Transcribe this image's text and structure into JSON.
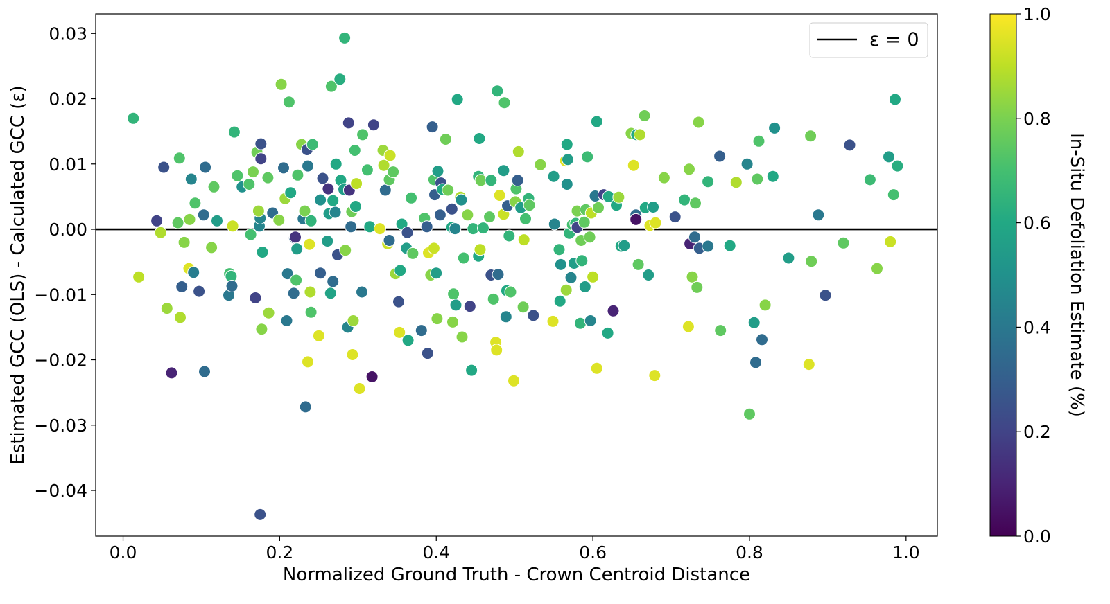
{
  "chart_data": {
    "type": "scatter",
    "title": "",
    "xlabel": "Normalized Ground Truth - Crown Centroid Distance",
    "ylabel": "Estimated GCC (OLS) - Calculated GCC  (ε)",
    "xlim": [
      -0.035,
      1.04
    ],
    "ylim": [
      -0.047,
      0.033
    ],
    "xticks": [
      0.0,
      0.2,
      0.4,
      0.6,
      0.8,
      1.0
    ],
    "xtick_labels": [
      "0.0",
      "0.2",
      "0.4",
      "0.6",
      "0.8",
      "1.0"
    ],
    "yticks": [
      0.03,
      0.02,
      0.01,
      0.0,
      -0.01,
      -0.02,
      -0.03,
      -0.04
    ],
    "ytick_labels": [
      "0.03",
      "0.02",
      "0.01",
      "0.00",
      "−0.01",
      "−0.02",
      "−0.03",
      "−0.04"
    ],
    "reference_line": {
      "y": 0,
      "label": "ε = 0"
    },
    "legend": {
      "position": "top-right",
      "entries": [
        "ε = 0"
      ]
    },
    "colorbar": {
      "label": "In-Situ Defoliation Estimate (%)",
      "colormap": "viridis",
      "range": [
        0.0,
        1.0
      ],
      "ticks": [
        0.0,
        0.2,
        0.4,
        0.6,
        0.8,
        1.0
      ],
      "tick_labels": [
        "0.0",
        "0.2",
        "0.4",
        "0.6",
        "0.8",
        "1.0"
      ]
    },
    "points": [
      [
        0.013,
        0.017,
        0.65
      ],
      [
        0.02,
        -0.0073,
        0.9
      ],
      [
        0.043,
        0.0013,
        0.2
      ],
      [
        0.048,
        -0.0005,
        0.88
      ],
      [
        0.052,
        0.0095,
        0.25
      ],
      [
        0.056,
        -0.0121,
        0.85
      ],
      [
        0.062,
        -0.022,
        0.1
      ],
      [
        0.07,
        0.001,
        0.75
      ],
      [
        0.072,
        0.0109,
        0.72
      ],
      [
        0.073,
        -0.0135,
        0.88
      ],
      [
        0.075,
        -0.0088,
        0.3
      ],
      [
        0.078,
        -0.002,
        0.82
      ],
      [
        0.084,
        -0.006,
        0.95
      ],
      [
        0.085,
        0.0015,
        0.82
      ],
      [
        0.087,
        0.0077,
        0.45
      ],
      [
        0.09,
        -0.0066,
        0.42
      ],
      [
        0.092,
        0.004,
        0.72
      ],
      [
        0.097,
        -0.0095,
        0.25
      ],
      [
        0.103,
        0.0022,
        0.35
      ],
      [
        0.104,
        -0.0218,
        0.35
      ],
      [
        0.105,
        0.0095,
        0.35
      ],
      [
        0.113,
        -0.0028,
        0.82
      ],
      [
        0.116,
        0.0065,
        0.75
      ],
      [
        0.12,
        0.0013,
        0.55
      ],
      [
        0.135,
        -0.0101,
        0.4
      ],
      [
        0.136,
        -0.0068,
        0.7
      ],
      [
        0.138,
        -0.0072,
        0.65
      ],
      [
        0.139,
        -0.0087,
        0.35
      ],
      [
        0.14,
        0.0005,
        0.92
      ],
      [
        0.142,
        0.0149,
        0.65
      ],
      [
        0.146,
        0.0082,
        0.72
      ],
      [
        0.152,
        0.0065,
        0.5
      ],
      [
        0.161,
        0.0069,
        0.72
      ],
      [
        0.163,
        -0.0008,
        0.7
      ],
      [
        0.166,
        0.0088,
        0.8
      ],
      [
        0.169,
        -0.0105,
        0.2
      ],
      [
        0.171,
        0.0118,
        0.78
      ],
      [
        0.174,
        0.0005,
        0.45
      ],
      [
        0.175,
        0.0017,
        0.45
      ],
      [
        0.175,
        -0.0437,
        0.25
      ],
      [
        0.176,
        0.0108,
        0.2
      ],
      [
        0.177,
        -0.0153,
        0.82
      ],
      [
        0.178,
        -0.0035,
        0.6
      ],
      [
        0.176,
        0.0131,
        0.25
      ],
      [
        0.173,
        0.0028,
        0.85
      ],
      [
        0.185,
        0.0079,
        0.75
      ],
      [
        0.186,
        -0.0128,
        0.85
      ],
      [
        0.191,
        0.0025,
        0.35
      ],
      [
        0.199,
        0.0014,
        0.82
      ],
      [
        0.202,
        0.0222,
        0.82
      ],
      [
        0.205,
        0.0094,
        0.35
      ],
      [
        0.207,
        0.0047,
        0.85
      ],
      [
        0.209,
        -0.014,
        0.4
      ],
      [
        0.21,
        -0.0068,
        0.4
      ],
      [
        0.212,
        0.0195,
        0.72
      ],
      [
        0.214,
        0.0056,
        0.6
      ],
      [
        0.218,
        -0.0098,
        0.35
      ],
      [
        0.219,
        -0.0013,
        0.3
      ],
      [
        0.22,
        -0.0012,
        0.15
      ],
      [
        0.221,
        -0.0078,
        0.72
      ],
      [
        0.222,
        -0.003,
        0.55
      ],
      [
        0.223,
        0.0083,
        0.72
      ],
      [
        0.228,
        0.013,
        0.82
      ],
      [
        0.23,
        0.0016,
        0.4
      ],
      [
        0.232,
        0.0028,
        0.8
      ],
      [
        0.233,
        -0.0272,
        0.35
      ],
      [
        0.235,
        0.0122,
        0.25
      ],
      [
        0.236,
        0.0097,
        0.4
      ],
      [
        0.236,
        -0.0203,
        0.95
      ],
      [
        0.238,
        -0.0023,
        0.95
      ],
      [
        0.239,
        -0.0096,
        0.88
      ],
      [
        0.24,
        0.0013,
        0.65
      ],
      [
        0.24,
        -0.0127,
        0.72
      ],
      [
        0.242,
        0.013,
        0.68
      ],
      [
        0.25,
        -0.0163,
        0.95
      ],
      [
        0.252,
        0.0045,
        0.5
      ],
      [
        0.252,
        -0.0067,
        0.3
      ],
      [
        0.255,
        0.0078,
        0.25
      ],
      [
        0.261,
        -0.0018,
        0.55
      ],
      [
        0.262,
        0.0062,
        0.15
      ],
      [
        0.263,
        0.0024,
        0.55
      ],
      [
        0.265,
        -0.0098,
        0.58
      ],
      [
        0.266,
        0.0219,
        0.72
      ],
      [
        0.268,
        0.0044,
        0.6
      ],
      [
        0.268,
        -0.008,
        0.35
      ],
      [
        0.271,
        0.0026,
        0.45
      ],
      [
        0.272,
        0.01,
        0.6
      ],
      [
        0.274,
        -0.0039,
        0.25
      ],
      [
        0.277,
        0.023,
        0.62
      ],
      [
        0.278,
        0.0075,
        0.6
      ],
      [
        0.282,
        0.0061,
        0.55
      ],
      [
        0.283,
        0.0293,
        0.65
      ],
      [
        0.284,
        -0.0032,
        0.82
      ],
      [
        0.287,
        -0.015,
        0.45
      ],
      [
        0.288,
        0.0163,
        0.2
      ],
      [
        0.289,
        0.006,
        0.15
      ],
      [
        0.291,
        0.0004,
        0.35
      ],
      [
        0.292,
        0.0027,
        0.78
      ],
      [
        0.293,
        -0.0192,
        0.95
      ],
      [
        0.294,
        -0.014,
        0.85
      ],
      [
        0.296,
        0.0121,
        0.7
      ],
      [
        0.297,
        0.0035,
        0.6
      ],
      [
        0.298,
        0.007,
        0.9
      ],
      [
        0.302,
        -0.0244,
        0.95
      ],
      [
        0.305,
        -0.0096,
        0.4
      ],
      [
        0.306,
        0.0145,
        0.72
      ],
      [
        0.312,
        0.0091,
        0.7
      ],
      [
        0.315,
        0.0004,
        0.6
      ],
      [
        0.318,
        -0.0226,
        0.05
      ],
      [
        0.32,
        0.016,
        0.2
      ],
      [
        0.328,
        0.0001,
        0.95
      ],
      [
        0.332,
        0.0121,
        0.85
      ],
      [
        0.333,
        0.0098,
        0.88
      ],
      [
        0.335,
        0.006,
        0.35
      ],
      [
        0.338,
        -0.0022,
        0.92
      ],
      [
        0.34,
        0.0076,
        0.75
      ],
      [
        0.34,
        -0.0017,
        0.35
      ],
      [
        0.341,
        0.0113,
        0.92
      ],
      [
        0.345,
        0.0088,
        0.75
      ],
      [
        0.348,
        -0.0068,
        0.85
      ],
      [
        0.352,
        -0.0111,
        0.25
      ],
      [
        0.353,
        -0.0158,
        0.95
      ],
      [
        0.354,
        -0.0063,
        0.6
      ],
      [
        0.356,
        0.0008,
        0.6
      ],
      [
        0.362,
        -0.0029,
        0.55
      ],
      [
        0.363,
        -0.0005,
        0.25
      ],
      [
        0.364,
        -0.017,
        0.6
      ],
      [
        0.368,
        0.0048,
        0.7
      ],
      [
        0.37,
        -0.0037,
        0.75
      ],
      [
        0.381,
        -0.0155,
        0.35
      ],
      [
        0.385,
        0.0017,
        0.72
      ],
      [
        0.388,
        0.0004,
        0.3
      ],
      [
        0.389,
        -0.019,
        0.25
      ],
      [
        0.39,
        -0.0036,
        0.95
      ],
      [
        0.393,
        -0.007,
        0.82
      ],
      [
        0.395,
        0.0157,
        0.3
      ],
      [
        0.397,
        0.0076,
        0.72
      ],
      [
        0.397,
        -0.0029,
        0.92
      ],
      [
        0.398,
        0.0053,
        0.3
      ],
      [
        0.4,
        -0.0067,
        0.55
      ],
      [
        0.401,
        -0.0137,
        0.82
      ],
      [
        0.402,
        0.0089,
        0.55
      ],
      [
        0.405,
        0.0022,
        0.3
      ],
      [
        0.406,
        0.0071,
        0.25
      ],
      [
        0.408,
        0.0061,
        0.6
      ],
      [
        0.412,
        0.0138,
        0.78
      ],
      [
        0.415,
        0.006,
        0.78
      ],
      [
        0.42,
        0.0003,
        0.6
      ],
      [
        0.421,
        -0.0142,
        0.82
      ],
      [
        0.422,
        -0.0099,
        0.72
      ],
      [
        0.42,
        0.0031,
        0.25
      ],
      [
        0.424,
        0.0001,
        0.45
      ],
      [
        0.425,
        -0.0116,
        0.55
      ],
      [
        0.427,
        0.0199,
        0.6
      ],
      [
        0.431,
        0.0049,
        0.88
      ],
      [
        0.432,
        0.0045,
        0.5
      ],
      [
        0.433,
        -0.0165,
        0.82
      ],
      [
        0.435,
        -0.0044,
        0.7
      ],
      [
        0.44,
        0.0022,
        0.82
      ],
      [
        0.443,
        -0.0118,
        0.2
      ],
      [
        0.445,
        -0.0216,
        0.6
      ],
      [
        0.447,
        0.0001,
        0.65
      ],
      [
        0.454,
        -0.0041,
        0.6
      ],
      [
        0.454,
        0.0081,
        0.65
      ],
      [
        0.455,
        0.0139,
        0.6
      ],
      [
        0.456,
        -0.0031,
        0.9
      ],
      [
        0.457,
        0.0075,
        0.78
      ],
      [
        0.46,
        0.0002,
        0.65
      ],
      [
        0.468,
        0.0019,
        0.75
      ],
      [
        0.47,
        -0.007,
        0.25
      ],
      [
        0.47,
        0.0075,
        0.65
      ],
      [
        0.473,
        -0.0107,
        0.72
      ],
      [
        0.476,
        -0.0173,
        0.95
      ],
      [
        0.477,
        -0.0185,
        0.95
      ],
      [
        0.478,
        0.0212,
        0.65
      ],
      [
        0.479,
        -0.0069,
        0.35
      ],
      [
        0.481,
        0.0052,
        0.95
      ],
      [
        0.486,
        0.0023,
        0.92
      ],
      [
        0.486,
        0.009,
        0.55
      ],
      [
        0.487,
        0.0194,
        0.72
      ],
      [
        0.489,
        -0.0134,
        0.45
      ],
      [
        0.49,
        -0.0094,
        0.6
      ],
      [
        0.491,
        0.0036,
        0.3
      ],
      [
        0.493,
        -0.001,
        0.65
      ],
      [
        0.495,
        -0.0096,
        0.72
      ],
      [
        0.499,
        -0.0232,
        0.95
      ],
      [
        0.501,
        0.0042,
        0.82
      ],
      [
        0.502,
        0.0062,
        0.72
      ],
      [
        0.504,
        0.0075,
        0.3
      ],
      [
        0.505,
        0.0119,
        0.88
      ],
      [
        0.508,
        0.0033,
        0.55
      ],
      [
        0.511,
        -0.0119,
        0.78
      ],
      [
        0.512,
        -0.0016,
        0.9
      ],
      [
        0.514,
        0.0016,
        0.7
      ],
      [
        0.518,
        0.0047,
        0.65
      ],
      [
        0.519,
        0.0037,
        0.75
      ],
      [
        0.524,
        -0.0132,
        0.25
      ],
      [
        0.533,
        0.0099,
        0.82
      ],
      [
        0.549,
        -0.0141,
        0.95
      ],
      [
        0.55,
        0.0081,
        0.55
      ],
      [
        0.551,
        0.0008,
        0.45
      ],
      [
        0.557,
        -0.0031,
        0.65
      ],
      [
        0.558,
        -0.011,
        0.6
      ],
      [
        0.559,
        -0.0054,
        0.5
      ],
      [
        0.565,
        0.0105,
        0.95
      ],
      [
        0.566,
        -0.0093,
        0.85
      ],
      [
        0.567,
        0.013,
        0.6
      ],
      [
        0.567,
        0.0069,
        0.5
      ],
      [
        0.568,
        0.0107,
        0.55
      ],
      [
        0.57,
        -0.0006,
        0.65
      ],
      [
        0.572,
        -0.0074,
        0.45
      ],
      [
        0.574,
        0.0007,
        0.7
      ],
      [
        0.576,
        -0.0052,
        0.55
      ],
      [
        0.578,
        0.0009,
        0.65
      ],
      [
        0.58,
        0.0028,
        0.8
      ],
      [
        0.58,
        0.0003,
        0.2
      ],
      [
        0.584,
        -0.0144,
        0.65
      ],
      [
        0.585,
        -0.0017,
        0.78
      ],
      [
        0.586,
        -0.0048,
        0.65
      ],
      [
        0.589,
        0.0011,
        0.75
      ],
      [
        0.59,
        -0.0088,
        0.55
      ],
      [
        0.591,
        0.003,
        0.75
      ],
      [
        0.593,
        0.0111,
        0.68
      ],
      [
        0.596,
        -0.0012,
        0.78
      ],
      [
        0.597,
        -0.014,
        0.45
      ],
      [
        0.598,
        0.0025,
        0.9
      ],
      [
        0.6,
        -0.0073,
        0.9
      ],
      [
        0.603,
        0.0051,
        0.4
      ],
      [
        0.605,
        -0.0213,
        0.95
      ],
      [
        0.605,
        0.0165,
        0.6
      ],
      [
        0.607,
        0.0033,
        0.78
      ],
      [
        0.614,
        0.0053,
        0.2
      ],
      [
        0.619,
        -0.0159,
        0.6
      ],
      [
        0.62,
        0.005,
        0.6
      ],
      [
        0.626,
        -0.0125,
        0.1
      ],
      [
        0.63,
        0.0037,
        0.6
      ],
      [
        0.633,
        0.0049,
        0.85
      ],
      [
        0.636,
        -0.0026,
        0.6
      ],
      [
        0.64,
        -0.0025,
        0.55
      ],
      [
        0.649,
        0.0147,
        0.82
      ],
      [
        0.652,
        0.0098,
        0.95
      ],
      [
        0.655,
        0.0022,
        0.35
      ],
      [
        0.655,
        0.0015,
        0.05
      ],
      [
        0.656,
        0.0145,
        0.6
      ],
      [
        0.658,
        -0.0054,
        0.75
      ],
      [
        0.66,
        0.0145,
        0.88
      ],
      [
        0.666,
        0.0174,
        0.78
      ],
      [
        0.667,
        0.0033,
        0.6
      ],
      [
        0.671,
        -0.007,
        0.55
      ],
      [
        0.673,
        0.0006,
        0.95
      ],
      [
        0.677,
        0.0034,
        0.55
      ],
      [
        0.679,
        -0.0224,
        0.95
      ],
      [
        0.68,
        0.001,
        0.95
      ],
      [
        0.691,
        0.0079,
        0.82
      ],
      [
        0.705,
        0.0019,
        0.25
      ],
      [
        0.717,
        0.0045,
        0.65
      ],
      [
        0.722,
        -0.0149,
        0.95
      ],
      [
        0.723,
        0.0092,
        0.82
      ],
      [
        0.724,
        -0.0022,
        0.1
      ],
      [
        0.727,
        -0.0073,
        0.82
      ],
      [
        0.73,
        -0.0012,
        0.35
      ],
      [
        0.731,
        0.004,
        0.75
      ],
      [
        0.733,
        -0.0089,
        0.78
      ],
      [
        0.735,
        0.0164,
        0.82
      ],
      [
        0.736,
        -0.0029,
        0.3
      ],
      [
        0.747,
        0.0073,
        0.65
      ],
      [
        0.747,
        -0.0026,
        0.4
      ],
      [
        0.762,
        0.0112,
        0.3
      ],
      [
        0.763,
        -0.0155,
        0.75
      ],
      [
        0.775,
        -0.0025,
        0.6
      ],
      [
        0.783,
        0.0072,
        0.88
      ],
      [
        0.797,
        0.01,
        0.45
      ],
      [
        0.8,
        -0.0283,
        0.75
      ],
      [
        0.806,
        -0.0143,
        0.55
      ],
      [
        0.808,
        -0.0204,
        0.35
      ],
      [
        0.81,
        0.0077,
        0.75
      ],
      [
        0.812,
        0.0135,
        0.72
      ],
      [
        0.816,
        -0.0169,
        0.35
      ],
      [
        0.82,
        -0.0116,
        0.82
      ],
      [
        0.83,
        0.0081,
        0.6
      ],
      [
        0.832,
        0.0155,
        0.5
      ],
      [
        0.85,
        -0.0044,
        0.55
      ],
      [
        0.876,
        -0.0207,
        0.95
      ],
      [
        0.878,
        0.0143,
        0.78
      ],
      [
        0.879,
        -0.0049,
        0.78
      ],
      [
        0.888,
        0.0022,
        0.4
      ],
      [
        0.897,
        -0.0101,
        0.25
      ],
      [
        0.92,
        -0.0021,
        0.75
      ],
      [
        0.928,
        0.0129,
        0.25
      ],
      [
        0.954,
        0.0076,
        0.68
      ],
      [
        0.963,
        -0.006,
        0.82
      ],
      [
        0.978,
        0.0111,
        0.55
      ],
      [
        0.98,
        -0.0019,
        0.92
      ],
      [
        0.984,
        0.0053,
        0.7
      ],
      [
        0.986,
        0.0199,
        0.6
      ],
      [
        0.989,
        0.0097,
        0.62
      ]
    ]
  }
}
